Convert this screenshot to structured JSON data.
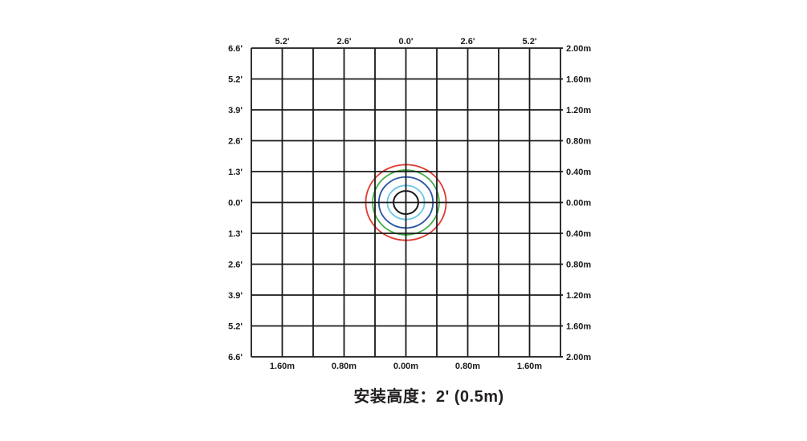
{
  "page": {
    "background_color": "#ffffff",
    "text_color": "#1a1a1a"
  },
  "caption": {
    "text": "安装高度：2' (0.5m)"
  },
  "chart_data": {
    "type": "line",
    "subtype": "detection-coverage-diagram",
    "title": "安装高度：2' (0.5m)",
    "xlim_m": [
      -2.0,
      2.0
    ],
    "ylim_m": [
      -2.0,
      2.0
    ],
    "grid": {
      "on": true,
      "step_m": 0.4,
      "line_color": "#1a1a1a"
    },
    "axes": {
      "top": {
        "unit": "feet",
        "ticks": [
          {
            "label": "5.2'",
            "pos_m": -1.6
          },
          {
            "label": "2.6'",
            "pos_m": -0.8
          },
          {
            "label": "0.0'",
            "pos_m": 0
          },
          {
            "label": "2.6'",
            "pos_m": 0.8
          },
          {
            "label": "5.2'",
            "pos_m": 1.6
          }
        ]
      },
      "bottom": {
        "unit": "meters",
        "ticks": [
          {
            "label": "1.60m",
            "pos_m": -1.6
          },
          {
            "label": "0.80m",
            "pos_m": -0.8
          },
          {
            "label": "0.00m",
            "pos_m": 0
          },
          {
            "label": "0.80m",
            "pos_m": 0.8
          },
          {
            "label": "1.60m",
            "pos_m": 1.6
          }
        ]
      },
      "left": {
        "unit": "feet",
        "ticks": [
          {
            "label": "6.6'",
            "pos_m": 2.0
          },
          {
            "label": "5.2'",
            "pos_m": 1.6
          },
          {
            "label": "3.9'",
            "pos_m": 1.2
          },
          {
            "label": "2.6'",
            "pos_m": 0.8
          },
          {
            "label": "1.3'",
            "pos_m": 0.4
          },
          {
            "label": "0.0'",
            "pos_m": 0
          },
          {
            "label": "1.3'",
            "pos_m": -0.4
          },
          {
            "label": "2.6'",
            "pos_m": -0.8
          },
          {
            "label": "3.9'",
            "pos_m": -1.2
          },
          {
            "label": "5.2'",
            "pos_m": -1.6
          },
          {
            "label": "6.6'",
            "pos_m": -2.0
          }
        ]
      },
      "right": {
        "unit": "meters",
        "ticks": [
          {
            "label": "2.00m",
            "pos_m": 2.0
          },
          {
            "label": "1.60m",
            "pos_m": 1.6
          },
          {
            "label": "1.20m",
            "pos_m": 1.2
          },
          {
            "label": "0.80m",
            "pos_m": 0.8
          },
          {
            "label": "0.40m",
            "pos_m": 0.4
          },
          {
            "label": "0.00m",
            "pos_m": 0
          },
          {
            "label": "0.40m",
            "pos_m": -0.4
          },
          {
            "label": "0.80m",
            "pos_m": -0.8
          },
          {
            "label": "1.20m",
            "pos_m": -1.2
          },
          {
            "label": "1.60m",
            "pos_m": -1.6
          },
          {
            "label": "2.00m",
            "pos_m": -2.0
          }
        ]
      }
    },
    "rings": [
      {
        "name": "coverage-ring-red",
        "color": "#e03a30",
        "center_m": [
          0,
          0
        ],
        "rx_m": 0.52,
        "ry_m": 0.49,
        "stroke_px": 1.8
      },
      {
        "name": "coverage-ring-green",
        "color": "#43ac47",
        "center_m": [
          0,
          0
        ],
        "rx_m": 0.43,
        "ry_m": 0.42,
        "stroke_px": 1.8
      },
      {
        "name": "coverage-ring-blue",
        "color": "#2a55a2",
        "center_m": [
          0,
          0
        ],
        "rx_m": 0.35,
        "ry_m": 0.33,
        "stroke_px": 1.8
      },
      {
        "name": "coverage-ring-lightblue",
        "color": "#6cc8e6",
        "center_m": [
          0,
          0
        ],
        "rx_m": 0.24,
        "ry_m": 0.22,
        "stroke_px": 1.8
      },
      {
        "name": "coverage-ring-black",
        "color": "#1a1a1a",
        "center_m": [
          0,
          0
        ],
        "rx_m": 0.16,
        "ry_m": 0.15,
        "stroke_px": 2.0
      }
    ]
  }
}
